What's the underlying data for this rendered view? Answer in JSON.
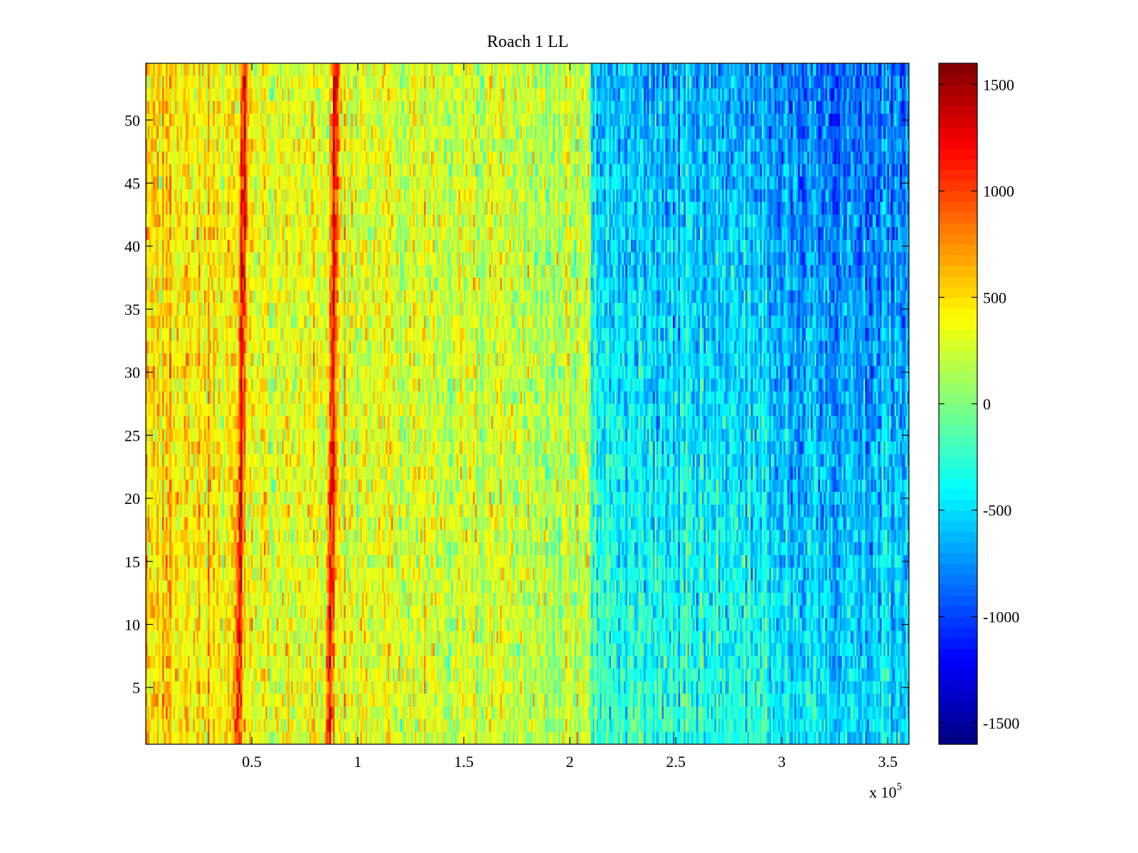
{
  "chart_data": {
    "type": "heatmap",
    "title": "Roach 1 LL",
    "xlabel": "",
    "ylabel": "",
    "x_multiplier": "x 10",
    "x_multiplier_exp": "5",
    "xlim": [
      0,
      360000
    ],
    "ylim": [
      0.5,
      54.5
    ],
    "x_ticks": [
      50000,
      100000,
      150000,
      200000,
      250000,
      300000,
      350000
    ],
    "x_tick_labels": [
      "0.5",
      "1",
      "1.5",
      "2",
      "2.5",
      "3",
      "3.5"
    ],
    "y_ticks": [
      5,
      10,
      15,
      20,
      25,
      30,
      35,
      40,
      45,
      50
    ],
    "y_tick_labels": [
      "5",
      "10",
      "15",
      "20",
      "25",
      "30",
      "35",
      "40",
      "45",
      "50"
    ],
    "rows": 54,
    "colormap": "jet",
    "clim": [
      -1600,
      1600
    ],
    "colorbar": {
      "ticks": [
        1500,
        1000,
        500,
        0,
        -500,
        -1000,
        -1500
      ],
      "tick_labels": [
        "1500",
        "1000",
        "500",
        "0",
        "-500",
        "-1000",
        "-1500"
      ],
      "placement": "right"
    },
    "grid": false,
    "profile": {
      "description_points_x": [
        0,
        40000,
        100000,
        150000,
        209000,
        211000,
        260000,
        300000,
        360000
      ],
      "mean_values": [
        520,
        380,
        330,
        250,
        170,
        -330,
        -450,
        -520,
        -650
      ],
      "row_gradient_right": -250
    },
    "peaks": [
      {
        "x": 45000,
        "value": 1150
      },
      {
        "x": 88000,
        "value": 1200
      }
    ]
  }
}
